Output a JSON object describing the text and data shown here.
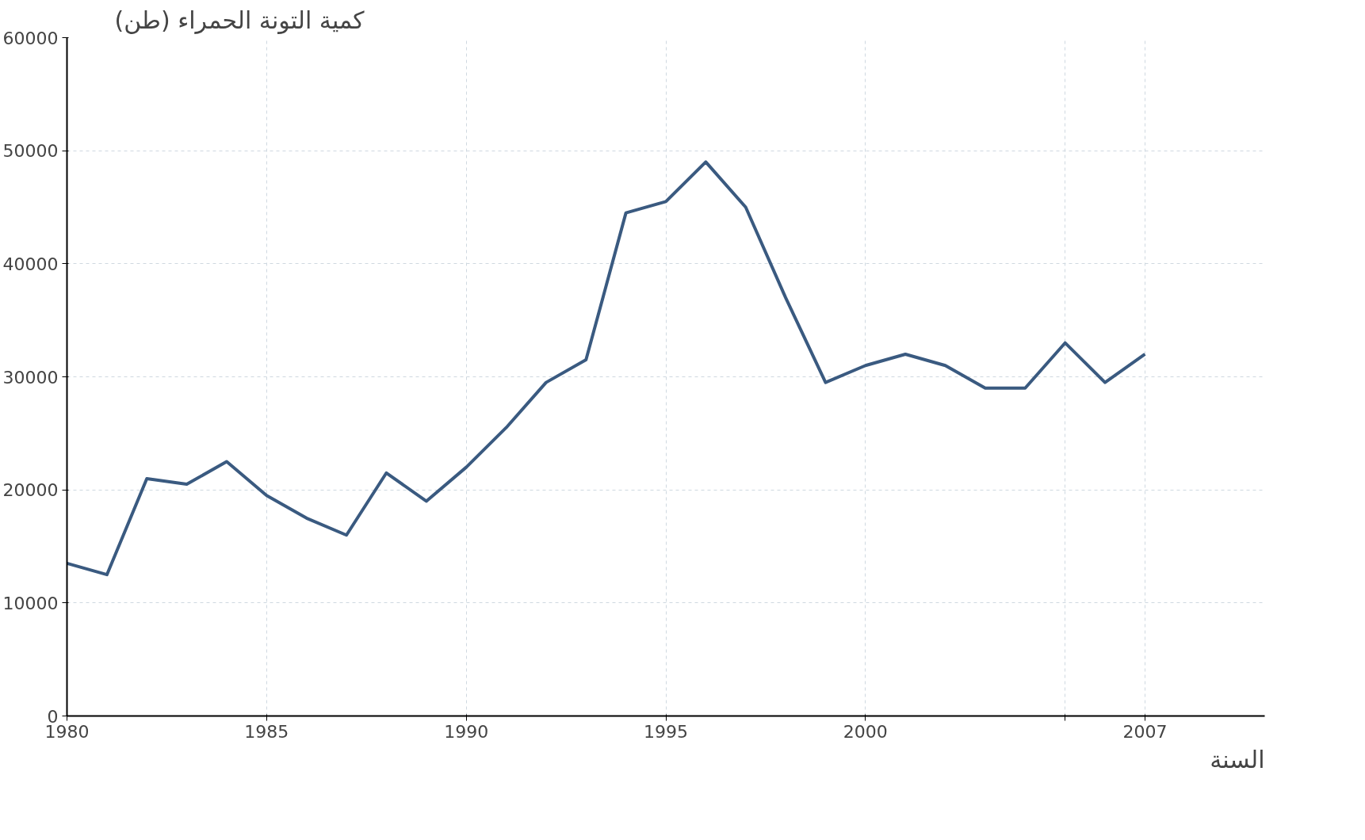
{
  "chart_data": {
    "type": "line",
    "ylabel": "كمية التونة الحمراء (طن)",
    "xlabel": "السنة",
    "x": [
      1980,
      1981,
      1982,
      1983,
      1984,
      1985,
      1986,
      1987,
      1988,
      1989,
      1990,
      1991,
      1992,
      1993,
      1994,
      1995,
      1996,
      1997,
      1998,
      1999,
      2000,
      2001,
      2002,
      2003,
      2004,
      2005,
      2006,
      2007
    ],
    "series": [
      {
        "color": "#3a5a80",
        "values": [
          13500,
          12500,
          21000,
          20500,
          22500,
          19500,
          17500,
          16000,
          21500,
          19000,
          22000,
          25500,
          29500,
          31500,
          44500,
          45500,
          49000,
          45000,
          37000,
          29500,
          31000,
          32000,
          31000,
          29000,
          29000,
          33000,
          29500,
          32000
        ]
      }
    ],
    "xlim": [
      1980,
      2010
    ],
    "ylim": [
      0,
      60000
    ],
    "xticks": [
      1980,
      1985,
      1990,
      1995,
      2000,
      {
        "value": 2005,
        "label": null
      },
      2007
    ],
    "yticks": [
      0,
      10000,
      20000,
      30000,
      40000,
      50000,
      60000
    ],
    "grid": true,
    "marker": "none",
    "line_style": "solid"
  }
}
